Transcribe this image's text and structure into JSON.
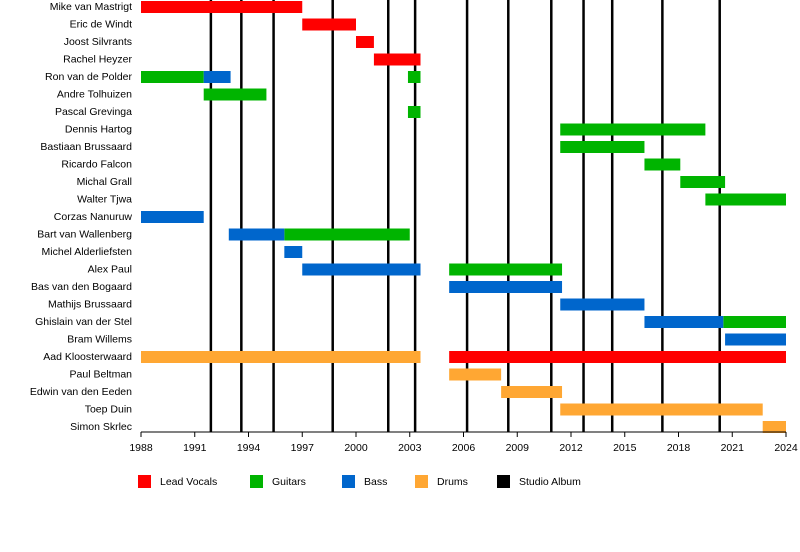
{
  "chart_data": {
    "type": "timeline",
    "categories": [
      "Mike van Mastrigt",
      "Eric de Windt",
      "Joost Silvrants",
      "Rachel Heyzer",
      "Ron van de Polder",
      "Andre Tolhuizen",
      "Pascal Grevinga",
      "Dennis Hartog",
      "Bastiaan Brussaard",
      "Ricardo Falcon",
      "Michal Grall",
      "Walter Tjwa",
      "Corzas Nanuruw",
      "Bart van Wallenberg",
      "Michel Alderliefsten",
      "Alex Paul",
      "Bas van den Bogaard",
      "Mathijs Brussaard",
      "Ghislain van der Stel",
      "Bram Willems",
      "Aad Kloosterwaard",
      "Paul Beltman",
      "Edwin van den Eeden",
      "Toep Duin",
      "Simon Skrlec"
    ],
    "series": [
      {
        "name": "Lead Vocals",
        "color": "#ff0000",
        "values": [
          [
            [
              1988,
              1997
            ]
          ],
          [
            [
              1997,
              2000
            ]
          ],
          [
            [
              2000,
              2001
            ]
          ],
          [
            [
              2001,
              2003.6
            ]
          ],
          null,
          null,
          null,
          null,
          null,
          null,
          null,
          null,
          null,
          null,
          null,
          null,
          null,
          null,
          null,
          null,
          [
            [
              2005.2,
              2024
            ]
          ],
          null,
          null,
          null,
          null
        ]
      },
      {
        "name": "Guitars",
        "color": "#00b400",
        "values": [
          null,
          null,
          null,
          null,
          [
            [
              1988,
              1991.5
            ],
            [
              2002.9,
              2003.6
            ]
          ],
          [
            [
              1991.5,
              1995
            ]
          ],
          [
            [
              2002.9,
              2003.6
            ]
          ],
          [
            [
              2011.4,
              2019.5
            ]
          ],
          [
            [
              2011.4,
              2016.1
            ]
          ],
          [
            [
              2016.1,
              2018.1
            ]
          ],
          [
            [
              2018.1,
              2020.6
            ]
          ],
          [
            [
              2019.5,
              2024
            ]
          ],
          null,
          [
            [
              1996,
              2003
            ]
          ],
          null,
          [
            [
              2005.2,
              2011.5
            ]
          ],
          null,
          null,
          [
            [
              2020.5,
              2024
            ]
          ],
          null,
          null,
          null,
          null,
          null,
          null
        ]
      },
      {
        "name": "Bass",
        "color": "#0066cc",
        "values": [
          null,
          null,
          null,
          null,
          [
            [
              1991.5,
              1993
            ]
          ],
          null,
          null,
          null,
          null,
          null,
          null,
          null,
          [
            [
              1988,
              1991.5
            ]
          ],
          [
            [
              1992.9,
              1996
            ]
          ],
          [
            [
              1996,
              1997
            ]
          ],
          [
            [
              1997,
              2003.6
            ]
          ],
          [
            [
              2005.2,
              2011.5
            ]
          ],
          [
            [
              2011.4,
              2016.1
            ]
          ],
          [
            [
              2016.1,
              2020.5
            ]
          ],
          [
            [
              2020.6,
              2024
            ]
          ],
          null,
          null,
          null,
          null,
          null
        ]
      },
      {
        "name": "Drums",
        "color": "#ffa733",
        "values": [
          null,
          null,
          null,
          null,
          null,
          null,
          null,
          null,
          null,
          null,
          null,
          null,
          null,
          null,
          null,
          null,
          null,
          null,
          null,
          null,
          [
            [
              1988,
              2003.6
            ]
          ],
          [
            [
              2005.2,
              2008.1
            ]
          ],
          [
            [
              2008.1,
              2011.5
            ]
          ],
          [
            [
              2011.4,
              2022.7
            ]
          ],
          [
            [
              2022.7,
              2024
            ]
          ]
        ]
      }
    ],
    "markers": {
      "name": "Studio Album",
      "color": "#000000",
      "values": [
        1991.9,
        1993.6,
        1995.4,
        1998.7,
        2001.8,
        2003.3,
        2006.2,
        2008.5,
        2010.9,
        2012.7,
        2014.3,
        2017.1,
        2020.3
      ]
    },
    "xlim": [
      1988,
      2024
    ],
    "xticks": [
      1988,
      1991,
      1994,
      1997,
      2000,
      2003,
      2006,
      2009,
      2012,
      2015,
      2018,
      2021,
      2024
    ]
  }
}
